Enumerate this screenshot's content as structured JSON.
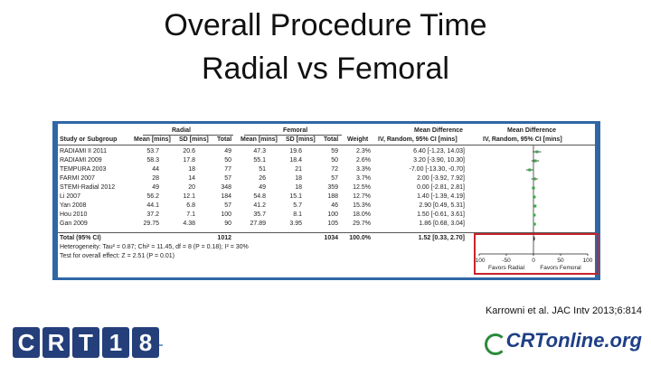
{
  "title": {
    "line1": "Overall Procedure Time",
    "line2": "Radial vs Femoral"
  },
  "table": {
    "group_headers": {
      "radial": "Radial",
      "femoral": "Femoral",
      "mean_diff": "Mean Difference",
      "mean_diff_plot": "Mean Difference"
    },
    "columns": [
      "Study or Subgroup",
      "Mean [mins]",
      "SD [mins]",
      "Total",
      "Mean [mins]",
      "SD [mins]",
      "Total",
      "Weight",
      "IV, Random, 95% CI [mins]",
      "IV, Random, 95% CI [mins]"
    ],
    "rows": [
      {
        "study": "RADIAMI II 2011",
        "r_mean": "53.7",
        "r_sd": "20.6",
        "r_total": "49",
        "f_mean": "47.3",
        "f_sd": "19.6",
        "f_total": "59",
        "weight": "2.3%",
        "ci": "6.40 [-1.23, 14.03]"
      },
      {
        "study": "RADIAMI 2009",
        "r_mean": "58.3",
        "r_sd": "17.8",
        "r_total": "50",
        "f_mean": "55.1",
        "f_sd": "18.4",
        "f_total": "50",
        "weight": "2.6%",
        "ci": "3.20 [-3.90, 10.30]"
      },
      {
        "study": "TEMPURA 2003",
        "r_mean": "44",
        "r_sd": "18",
        "r_total": "77",
        "f_mean": "51",
        "f_sd": "21",
        "f_total": "72",
        "weight": "3.3%",
        "ci": "-7.00 [-13.30, -0.70]"
      },
      {
        "study": "FARMI 2007",
        "r_mean": "28",
        "r_sd": "14",
        "r_total": "57",
        "f_mean": "26",
        "f_sd": "18",
        "f_total": "57",
        "weight": "3.7%",
        "ci": "2.00 [-3.92, 7.92]"
      },
      {
        "study": "STEMI-Radial 2012",
        "r_mean": "49",
        "r_sd": "20",
        "r_total": "348",
        "f_mean": "49",
        "f_sd": "18",
        "f_total": "359",
        "weight": "12.5%",
        "ci": "0.00 [-2.81, 2.81]"
      },
      {
        "study": "Li 2007",
        "r_mean": "56.2",
        "r_sd": "12.1",
        "r_total": "184",
        "f_mean": "54.8",
        "f_sd": "15.1",
        "f_total": "188",
        "weight": "12.7%",
        "ci": "1.40 [-1.39, 4.19]"
      },
      {
        "study": "Yan 2008",
        "r_mean": "44.1",
        "r_sd": "6.8",
        "r_total": "57",
        "f_mean": "41.2",
        "f_sd": "5.7",
        "f_total": "46",
        "weight": "15.3%",
        "ci": "2.90 [0.49, 5.31]"
      },
      {
        "study": "Hou 2010",
        "r_mean": "37.2",
        "r_sd": "7.1",
        "r_total": "100",
        "f_mean": "35.7",
        "f_sd": "8.1",
        "f_total": "100",
        "weight": "18.0%",
        "ci": "1.50 [-0.61, 3.61]"
      },
      {
        "study": "Gan 2009",
        "r_mean": "29.75",
        "r_sd": "4.38",
        "r_total": "90",
        "f_mean": "27.89",
        "f_sd": "3.95",
        "f_total": "105",
        "weight": "29.7%",
        "ci": "1.86 [0.68, 3.04]"
      }
    ],
    "total": {
      "label": "Total (95% CI)",
      "r_total": "1012",
      "f_total": "1034",
      "weight": "100.0%",
      "ci": "1.52 [0.33, 2.70]"
    },
    "heterogeneity": "Heterogeneity: Tau² = 0.87; Chi² = 11.45, df = 8 (P = 0.18); I² = 30%",
    "overall": "Test for overall effect: Z = 2.51 (P = 0.01)"
  },
  "chart_data": {
    "type": "scatter",
    "title": "",
    "xlabel": "",
    "ylabel": "",
    "xlim": [
      -100,
      100
    ],
    "x_ticks": [
      "-100",
      "-50",
      "0",
      "50",
      "100"
    ],
    "x_tick_values": [
      -100,
      -50,
      0,
      50,
      100
    ],
    "favors_left": "Favors Radial",
    "favors_right": "Favors Femoral",
    "estimates": [
      6.4,
      3.2,
      -7.0,
      2.0,
      0.0,
      1.4,
      2.9,
      1.5,
      1.86
    ],
    "lower": [
      -1.23,
      -3.9,
      -13.3,
      -3.92,
      -2.81,
      -1.39,
      0.49,
      -0.61,
      0.68
    ],
    "upper": [
      14.03,
      10.3,
      -0.7,
      7.92,
      2.81,
      4.19,
      5.31,
      3.61,
      3.04
    ],
    "pooled": {
      "estimate": 1.52,
      "lower": 0.33,
      "upper": 2.7
    },
    "marker_color": "#3aa845",
    "highlight_color": "#c8232c"
  },
  "citation": "Karrowni et al. JAC Intv 2013;6:814",
  "footer": {
    "crt_letters": [
      "C",
      "R",
      "T",
      "1",
      "8"
    ],
    "online_logo": "CRTonline.org"
  },
  "colors": {
    "figure_border": "#2f67a6",
    "crt_box": "#243f7a"
  }
}
